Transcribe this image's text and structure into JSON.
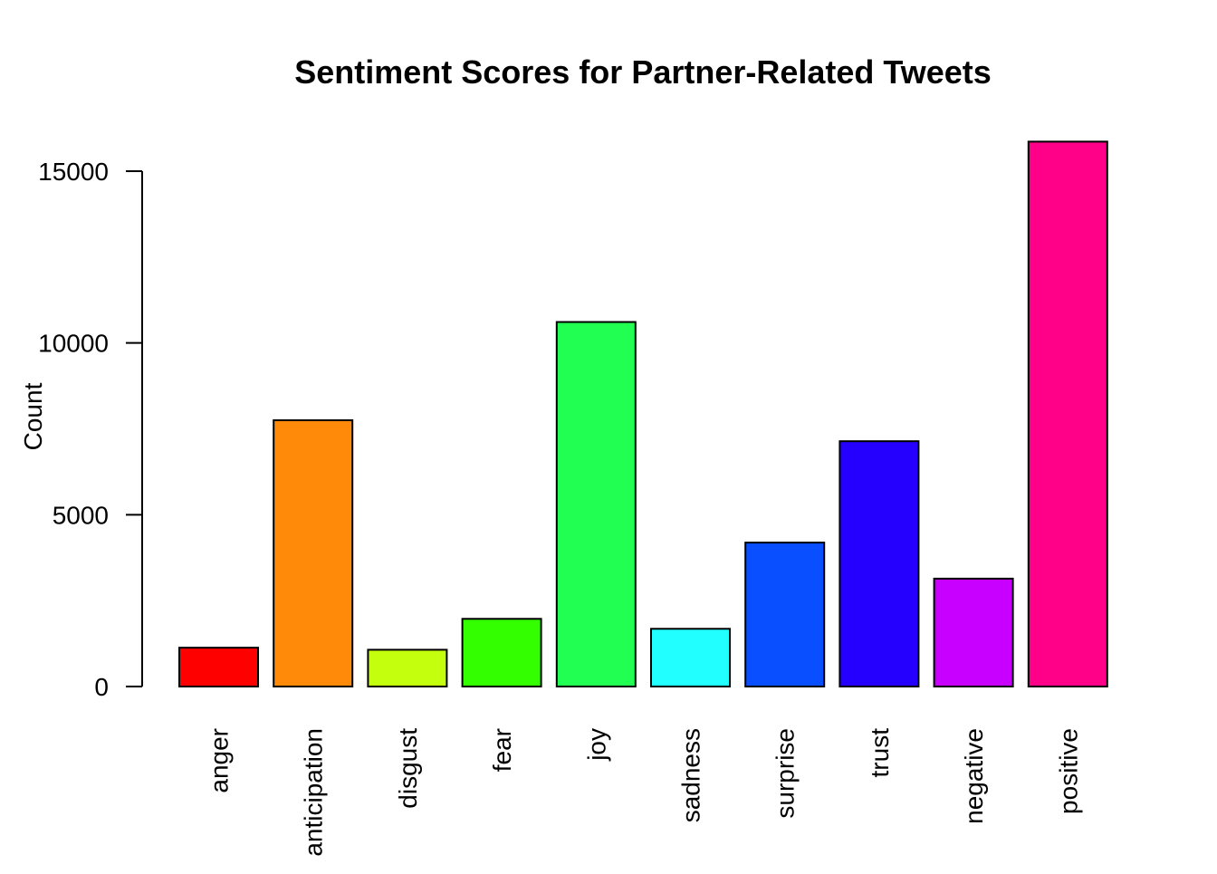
{
  "chart_data": {
    "type": "bar",
    "title": "Sentiment Scores for Partner-Related Tweets",
    "xlabel": "",
    "ylabel": "Count",
    "ylim": [
      0,
      15860
    ],
    "yticks": [
      0,
      5000,
      10000,
      15000
    ],
    "grid": false,
    "legend": "none",
    "categories": [
      "anger",
      "anticipation",
      "disgust",
      "fear",
      "joy",
      "sadness",
      "surprise",
      "trust",
      "negative",
      "positive"
    ],
    "values": [
      1130,
      7750,
      1070,
      1970,
      10610,
      1680,
      4190,
      7140,
      3140,
      15860
    ],
    "colors": [
      "#FF0000",
      "#FF8A0A",
      "#C4FF0E",
      "#33FF00",
      "#21FF52",
      "#21FFFF",
      "#0A4FFF",
      "#2600FF",
      "#C800FF",
      "#FF0088"
    ]
  }
}
